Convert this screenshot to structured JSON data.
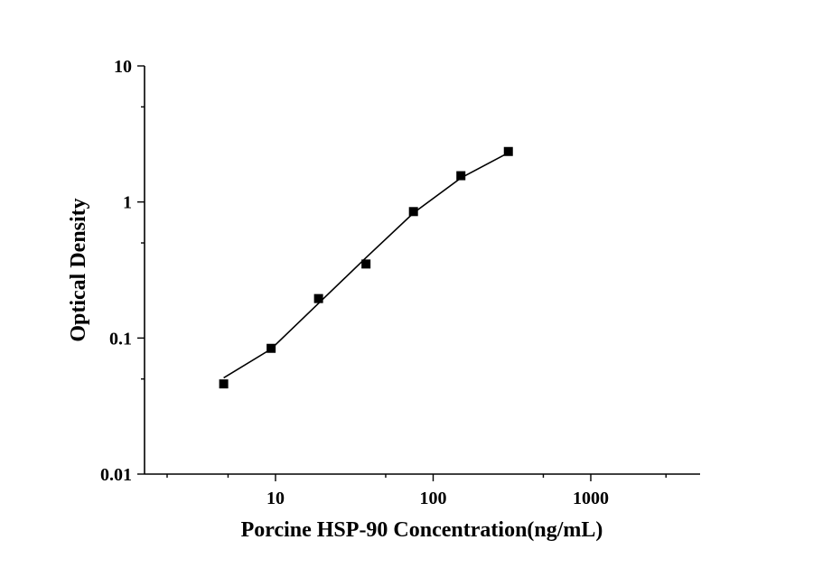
{
  "chart_data": {
    "type": "scatter",
    "xlabel": "Porcine HSP-90 Concentration(ng/mL)",
    "ylabel": "Optical Density",
    "x_scale": "log",
    "y_scale": "log",
    "xlim": [
      1.5,
      4000
    ],
    "ylim": [
      0.01,
      10
    ],
    "x_ticks": [
      {
        "value": 10,
        "label": "10"
      },
      {
        "value": 100,
        "label": "100"
      },
      {
        "value": 1000,
        "label": "1000"
      }
    ],
    "y_ticks": [
      {
        "value": 0.01,
        "label": "0.01"
      },
      {
        "value": 0.1,
        "label": "0.1"
      },
      {
        "value": 1,
        "label": "1"
      },
      {
        "value": 10,
        "label": "10"
      }
    ],
    "grid": false,
    "legend": "none",
    "series": [
      {
        "x": [
          4.69,
          9.38,
          18.75,
          37.5,
          75,
          150,
          300
        ],
        "y": [
          0.046,
          0.084,
          0.195,
          0.35,
          0.85,
          1.56,
          2.35
        ],
        "marker": "square",
        "color": "#000000",
        "fit_x": [
          4.69,
          9.38,
          18.75,
          37.5,
          75,
          150,
          300
        ],
        "fit_y": [
          0.051,
          0.083,
          0.18,
          0.39,
          0.83,
          1.5,
          2.3
        ]
      }
    ]
  }
}
